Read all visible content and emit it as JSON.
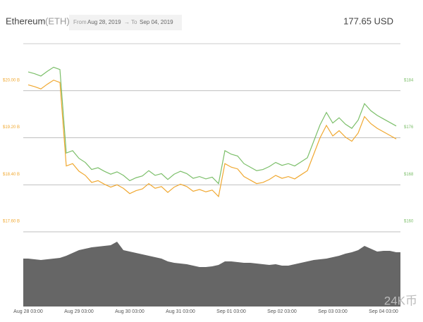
{
  "header": {
    "name": "Ethereum",
    "symbol": "(ETH)",
    "from_label": "From",
    "from_date": "Aug 28, 2019",
    "separator": "→",
    "to_label": "To",
    "to_date": "Sep 04, 2019",
    "price": "177.65 USD"
  },
  "watermark": "24K币",
  "chart_data": {
    "type": "line",
    "categories": [
      "Aug 28 03:00",
      null,
      null,
      null,
      null,
      null,
      null,
      null,
      "Aug 29 03:00",
      null,
      null,
      null,
      null,
      null,
      null,
      null,
      "Aug 30 03:00",
      null,
      null,
      null,
      null,
      null,
      null,
      null,
      "Aug 31 03:00",
      null,
      null,
      null,
      null,
      null,
      null,
      null,
      "Sep 01 03:00",
      null,
      null,
      null,
      null,
      null,
      null,
      null,
      "Sep 02 03:00",
      null,
      null,
      null,
      null,
      null,
      null,
      null,
      "Sep 03 03:00",
      null,
      null,
      null,
      null,
      null,
      null,
      null,
      "Sep 04 03:00",
      null,
      null
    ],
    "series": [
      {
        "color": "#7cbf6a",
        "axis": "y",
        "values": [
          187.2,
          186.9,
          186.5,
          187.3,
          188.0,
          187.6,
          173.4,
          173.8,
          172.5,
          171.8,
          170.6,
          170.9,
          170.3,
          169.8,
          170.2,
          169.6,
          168.7,
          169.2,
          169.5,
          170.4,
          169.6,
          169.9,
          168.9,
          169.8,
          170.3,
          169.9,
          169.1,
          169.4,
          169.0,
          169.3,
          168.2,
          173.8,
          173.2,
          172.9,
          171.6,
          171.0,
          170.4,
          170.6,
          171.1,
          171.8,
          171.3,
          171.6,
          171.2,
          171.9,
          172.6,
          175.4,
          178.2,
          180.3,
          178.5,
          179.4,
          178.3,
          177.6,
          179.0,
          181.8,
          180.6,
          179.8,
          179.2,
          178.6,
          178.0
        ]
      },
      {
        "color": "#f0a830",
        "axis": "y2",
        "values": [
          20.1,
          20.07,
          20.03,
          20.11,
          20.18,
          20.14,
          18.72,
          18.76,
          18.63,
          18.56,
          18.44,
          18.47,
          18.41,
          18.36,
          18.4,
          18.34,
          18.25,
          18.3,
          18.33,
          18.42,
          18.34,
          18.37,
          18.27,
          18.36,
          18.41,
          18.37,
          18.29,
          18.32,
          18.28,
          18.31,
          18.2,
          18.76,
          18.7,
          18.67,
          18.54,
          18.48,
          18.42,
          18.44,
          18.49,
          18.56,
          18.51,
          18.54,
          18.5,
          18.57,
          18.64,
          18.92,
          19.2,
          19.41,
          19.23,
          19.32,
          19.21,
          19.14,
          19.28,
          19.56,
          19.44,
          19.36,
          19.3,
          19.24,
          19.18
        ]
      }
    ],
    "ylim": [
      160,
      192
    ],
    "yticks": [
      {
        "value": 184,
        "label": "$184"
      },
      {
        "value": 176,
        "label": "$176"
      },
      {
        "value": 168,
        "label": "$168"
      },
      {
        "value": 160,
        "label": "$160"
      }
    ],
    "y2lim": [
      17.6,
      20.8
    ],
    "y2ticks": [
      {
        "value": 20.0,
        "label": "$20.00 B"
      },
      {
        "value": 19.2,
        "label": "$19.20 B"
      },
      {
        "value": 18.4,
        "label": "$18.40 B"
      },
      {
        "value": 17.6,
        "label": "$17.60 B"
      }
    ],
    "grid": true,
    "volume": {
      "color": "#666666",
      "lim": [
        0,
        100
      ],
      "values": [
        68,
        67,
        66,
        67,
        68,
        69,
        72,
        76,
        80,
        82,
        84,
        85,
        86,
        87,
        92,
        80,
        78,
        76,
        74,
        72,
        70,
        68,
        64,
        62,
        61,
        60,
        58,
        56,
        56,
        57,
        59,
        64,
        64,
        63,
        62,
        62,
        61,
        60,
        59,
        60,
        58,
        58,
        60,
        62,
        64,
        66,
        67,
        68,
        70,
        72,
        75,
        77,
        80,
        86,
        82,
        78,
        79,
        79,
        77
      ]
    }
  }
}
